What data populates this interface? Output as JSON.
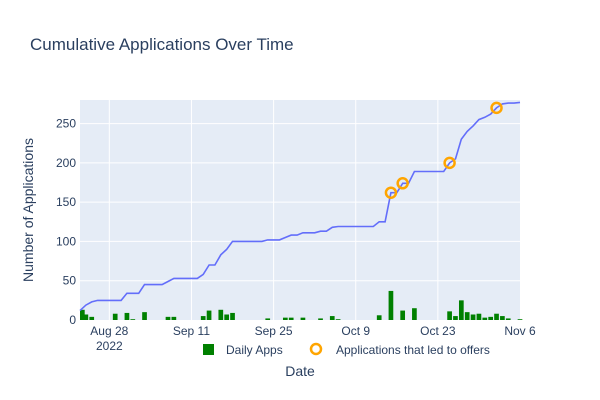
{
  "chart_data": {
    "type": "line",
    "title": "Cumulative Applications Over Time",
    "xlabel": "Date",
    "ylabel": "Number of Applications",
    "ylim": [
      0,
      280
    ],
    "xlim": [
      "2022-08-23",
      "2022-11-06"
    ],
    "y_ticks": [
      0,
      50,
      100,
      150,
      200,
      250
    ],
    "x_ticks": [
      {
        "date": "2022-08-28",
        "label": "Aug 28",
        "sublabel": "2022"
      },
      {
        "date": "2022-09-11",
        "label": "Sep 11",
        "sublabel": ""
      },
      {
        "date": "2022-09-25",
        "label": "Sep 25",
        "sublabel": ""
      },
      {
        "date": "2022-10-09",
        "label": "Oct 9",
        "sublabel": ""
      },
      {
        "date": "2022-10-23",
        "label": "Oct 23",
        "sublabel": ""
      },
      {
        "date": "2022-11-06",
        "label": "Nov 6",
        "sublabel": ""
      }
    ],
    "grid": true,
    "legend_position": "bottom",
    "colors": {
      "plot_bg": "#e5ecf6",
      "cumulative_line": "#636efa",
      "bars": "#008000",
      "offers": "#ffa500",
      "text": "#2a3f5f",
      "grid": "#ffffff"
    },
    "cumulative": {
      "points": [
        [
          "2022-08-23",
          12
        ],
        [
          "2022-08-24",
          19
        ],
        [
          "2022-08-25",
          23
        ],
        [
          "2022-08-26",
          25
        ],
        [
          "2022-08-27",
          25
        ],
        [
          "2022-08-28",
          25
        ],
        [
          "2022-08-29",
          25
        ],
        [
          "2022-08-30",
          25
        ],
        [
          "2022-08-31",
          34
        ],
        [
          "2022-09-01",
          34
        ],
        [
          "2022-09-02",
          34
        ],
        [
          "2022-09-03",
          45
        ],
        [
          "2022-09-04",
          45
        ],
        [
          "2022-09-05",
          45
        ],
        [
          "2022-09-06",
          45
        ],
        [
          "2022-09-07",
          49
        ],
        [
          "2022-09-08",
          53
        ],
        [
          "2022-09-09",
          53
        ],
        [
          "2022-09-10",
          53
        ],
        [
          "2022-09-11",
          53
        ],
        [
          "2022-09-12",
          53
        ],
        [
          "2022-09-13",
          58
        ],
        [
          "2022-09-14",
          70
        ],
        [
          "2022-09-15",
          70
        ],
        [
          "2022-09-16",
          83
        ],
        [
          "2022-09-17",
          90
        ],
        [
          "2022-09-18",
          100
        ],
        [
          "2022-09-19",
          100
        ],
        [
          "2022-09-20",
          100
        ],
        [
          "2022-09-21",
          100
        ],
        [
          "2022-09-22",
          100
        ],
        [
          "2022-09-23",
          100
        ],
        [
          "2022-09-24",
          102
        ],
        [
          "2022-09-25",
          102
        ],
        [
          "2022-09-26",
          102
        ],
        [
          "2022-09-27",
          105
        ],
        [
          "2022-09-28",
          108
        ],
        [
          "2022-09-29",
          108
        ],
        [
          "2022-09-30",
          111
        ],
        [
          "2022-10-01",
          111
        ],
        [
          "2022-10-02",
          111
        ],
        [
          "2022-10-03",
          113
        ],
        [
          "2022-10-04",
          113
        ],
        [
          "2022-10-05",
          118
        ],
        [
          "2022-10-06",
          119
        ],
        [
          "2022-10-07",
          119
        ],
        [
          "2022-10-08",
          119
        ],
        [
          "2022-10-09",
          119
        ],
        [
          "2022-10-10",
          119
        ],
        [
          "2022-10-11",
          119
        ],
        [
          "2022-10-12",
          119
        ],
        [
          "2022-10-13",
          125
        ],
        [
          "2022-10-14",
          125
        ],
        [
          "2022-10-15",
          162
        ],
        [
          "2022-10-16",
          162
        ],
        [
          "2022-10-17",
          174
        ],
        [
          "2022-10-18",
          174
        ],
        [
          "2022-10-19",
          189
        ],
        [
          "2022-10-20",
          189
        ],
        [
          "2022-10-21",
          189
        ],
        [
          "2022-10-22",
          189
        ],
        [
          "2022-10-23",
          189
        ],
        [
          "2022-10-24",
          189
        ],
        [
          "2022-10-25",
          200
        ],
        [
          "2022-10-26",
          205
        ],
        [
          "2022-10-27",
          230
        ],
        [
          "2022-10-28",
          240
        ],
        [
          "2022-10-29",
          247
        ],
        [
          "2022-10-30",
          255
        ],
        [
          "2022-10-31",
          258
        ],
        [
          "2022-11-01",
          262
        ],
        [
          "2022-11-02",
          270
        ],
        [
          "2022-11-03",
          275
        ],
        [
          "2022-11-04",
          276
        ],
        [
          "2022-11-05",
          276
        ],
        [
          "2022-11-06",
          277
        ]
      ]
    },
    "series": [
      {
        "name": "Daily Apps",
        "type": "bar",
        "points": [
          [
            "2022-08-23",
            13
          ],
          [
            "2022-08-24",
            7
          ],
          [
            "2022-08-25",
            4
          ],
          [
            "2022-08-29",
            8
          ],
          [
            "2022-08-31",
            9
          ],
          [
            "2022-09-01",
            1
          ],
          [
            "2022-09-03",
            10
          ],
          [
            "2022-09-07",
            4
          ],
          [
            "2022-09-08",
            4
          ],
          [
            "2022-09-13",
            5
          ],
          [
            "2022-09-14",
            12
          ],
          [
            "2022-09-16",
            13
          ],
          [
            "2022-09-17",
            7
          ],
          [
            "2022-09-18",
            9
          ],
          [
            "2022-09-24",
            2
          ],
          [
            "2022-09-27",
            3
          ],
          [
            "2022-09-28",
            3
          ],
          [
            "2022-09-30",
            3
          ],
          [
            "2022-10-03",
            2
          ],
          [
            "2022-10-05",
            5
          ],
          [
            "2022-10-06",
            1
          ],
          [
            "2022-10-13",
            6
          ],
          [
            "2022-10-15",
            37
          ],
          [
            "2022-10-17",
            12
          ],
          [
            "2022-10-19",
            15
          ],
          [
            "2022-10-25",
            11
          ],
          [
            "2022-10-26",
            5
          ],
          [
            "2022-10-27",
            25
          ],
          [
            "2022-10-28",
            10
          ],
          [
            "2022-10-29",
            7
          ],
          [
            "2022-10-30",
            8
          ],
          [
            "2022-10-31",
            3
          ],
          [
            "2022-11-01",
            4
          ],
          [
            "2022-11-02",
            8
          ],
          [
            "2022-11-03",
            5
          ],
          [
            "2022-11-04",
            2
          ],
          [
            "2022-11-06",
            1
          ]
        ]
      },
      {
        "name": "Applications that led to offers",
        "type": "scatter",
        "points": [
          [
            "2022-10-15",
            162
          ],
          [
            "2022-10-17",
            174
          ],
          [
            "2022-10-25",
            200
          ],
          [
            "2022-11-02",
            270
          ]
        ]
      }
    ]
  }
}
